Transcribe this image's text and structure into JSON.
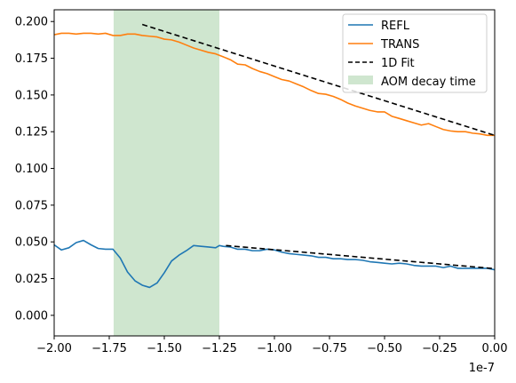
{
  "chart_data": {
    "type": "line",
    "title": "",
    "xlabel": "",
    "ylabel": "",
    "x_offset_label": "1e-7",
    "xlim": [
      -2.0,
      0.0
    ],
    "ylim": [
      -0.014,
      0.208
    ],
    "x_ticks": [
      {
        "value": -2.0,
        "label": "−2.00"
      },
      {
        "value": -1.75,
        "label": "−1.75"
      },
      {
        "value": -1.5,
        "label": "−1.50"
      },
      {
        "value": -1.25,
        "label": "−1.25"
      },
      {
        "value": -1.0,
        "label": "−1.00"
      },
      {
        "value": -0.75,
        "label": "−0.75"
      },
      {
        "value": -0.5,
        "label": "−0.50"
      },
      {
        "value": -0.25,
        "label": "−0.25"
      },
      {
        "value": 0.0,
        "label": "0.00"
      }
    ],
    "y_ticks": [
      {
        "value": 0.0,
        "label": "0.000"
      },
      {
        "value": 0.025,
        "label": "0.025"
      },
      {
        "value": 0.05,
        "label": "0.050"
      },
      {
        "value": 0.075,
        "label": "0.075"
      },
      {
        "value": 0.1,
        "label": "0.100"
      },
      {
        "value": 0.125,
        "label": "0.125"
      },
      {
        "value": 0.15,
        "label": "0.150"
      },
      {
        "value": 0.175,
        "label": "0.175"
      },
      {
        "value": 0.2,
        "label": "0.200"
      }
    ],
    "grid": false,
    "legend_position": "top-right",
    "shaded_region": {
      "name": "AOM decay time",
      "x_start": -1.73,
      "x_end": -1.25,
      "color": "#cfe6cf"
    },
    "series": [
      {
        "name": "REFL",
        "color": "#1f77b4",
        "style": "solid",
        "x": [
          -2.0,
          -1.967,
          -1.933,
          -1.9,
          -1.867,
          -1.833,
          -1.8,
          -1.767,
          -1.733,
          -1.7,
          -1.667,
          -1.633,
          -1.6,
          -1.567,
          -1.533,
          -1.5,
          -1.467,
          -1.433,
          -1.4,
          -1.367,
          -1.333,
          -1.3,
          -1.267,
          -1.25,
          -1.233,
          -1.2,
          -1.167,
          -1.133,
          -1.1,
          -1.067,
          -1.033,
          -1.0,
          -0.967,
          -0.933,
          -0.9,
          -0.867,
          -0.833,
          -0.8,
          -0.767,
          -0.733,
          -0.7,
          -0.667,
          -0.633,
          -0.6,
          -0.567,
          -0.533,
          -0.5,
          -0.467,
          -0.433,
          -0.4,
          -0.367,
          -0.333,
          -0.3,
          -0.267,
          -0.233,
          -0.2,
          -0.167,
          -0.133,
          -0.1,
          -0.067,
          -0.033,
          0.0
        ],
        "y": [
          0.048,
          0.0445,
          0.046,
          0.0495,
          0.051,
          0.048,
          0.0455,
          0.045,
          0.045,
          0.039,
          0.0295,
          0.0235,
          0.0205,
          0.019,
          0.022,
          0.029,
          0.037,
          0.041,
          0.044,
          0.0475,
          0.047,
          0.0465,
          0.046,
          0.0475,
          0.047,
          0.0465,
          0.045,
          0.045,
          0.044,
          0.044,
          0.045,
          0.0445,
          0.043,
          0.042,
          0.0415,
          0.041,
          0.0405,
          0.0395,
          0.0395,
          0.0385,
          0.0385,
          0.038,
          0.038,
          0.0375,
          0.0365,
          0.036,
          0.0355,
          0.035,
          0.0355,
          0.035,
          0.034,
          0.0335,
          0.0335,
          0.0335,
          0.0325,
          0.0335,
          0.032,
          0.032,
          0.032,
          0.032,
          0.032,
          0.031
        ]
      },
      {
        "name": "TRANS",
        "color": "#ff7f0e",
        "style": "solid",
        "x": [
          -2.0,
          -1.967,
          -1.933,
          -1.9,
          -1.867,
          -1.833,
          -1.8,
          -1.767,
          -1.733,
          -1.7,
          -1.667,
          -1.633,
          -1.6,
          -1.567,
          -1.533,
          -1.5,
          -1.467,
          -1.433,
          -1.4,
          -1.367,
          -1.333,
          -1.3,
          -1.267,
          -1.233,
          -1.2,
          -1.167,
          -1.133,
          -1.1,
          -1.067,
          -1.033,
          -1.0,
          -0.967,
          -0.933,
          -0.9,
          -0.867,
          -0.833,
          -0.8,
          -0.767,
          -0.733,
          -0.7,
          -0.667,
          -0.633,
          -0.6,
          -0.567,
          -0.533,
          -0.5,
          -0.467,
          -0.433,
          -0.4,
          -0.367,
          -0.333,
          -0.3,
          -0.267,
          -0.233,
          -0.2,
          -0.167,
          -0.133,
          -0.1,
          -0.067,
          -0.033,
          0.0
        ],
        "y": [
          0.191,
          0.192,
          0.192,
          0.1915,
          0.192,
          0.192,
          0.1915,
          0.192,
          0.1905,
          0.1905,
          0.1915,
          0.1915,
          0.1905,
          0.19,
          0.1895,
          0.188,
          0.1875,
          0.186,
          0.184,
          0.182,
          0.1805,
          0.179,
          0.178,
          0.176,
          0.174,
          0.171,
          0.1705,
          0.168,
          0.166,
          0.1645,
          0.1625,
          0.1605,
          0.1595,
          0.1575,
          0.1555,
          0.153,
          0.151,
          0.1505,
          0.149,
          0.147,
          0.1445,
          0.1425,
          0.141,
          0.1395,
          0.1385,
          0.1385,
          0.1355,
          0.134,
          0.1325,
          0.131,
          0.1295,
          0.1305,
          0.1285,
          0.1265,
          0.1255,
          0.125,
          0.125,
          0.124,
          0.1235,
          0.1225,
          0.1225
        ]
      },
      {
        "name": "1D Fit",
        "color": "#000000",
        "style": "dashed",
        "segments": [
          {
            "x": [
              -1.6,
              0.0
            ],
            "y": [
              0.198,
              0.1225
            ]
          },
          {
            "x": [
              -1.22,
              0.0
            ],
            "y": [
              0.0475,
              0.0318
            ]
          }
        ]
      }
    ]
  }
}
